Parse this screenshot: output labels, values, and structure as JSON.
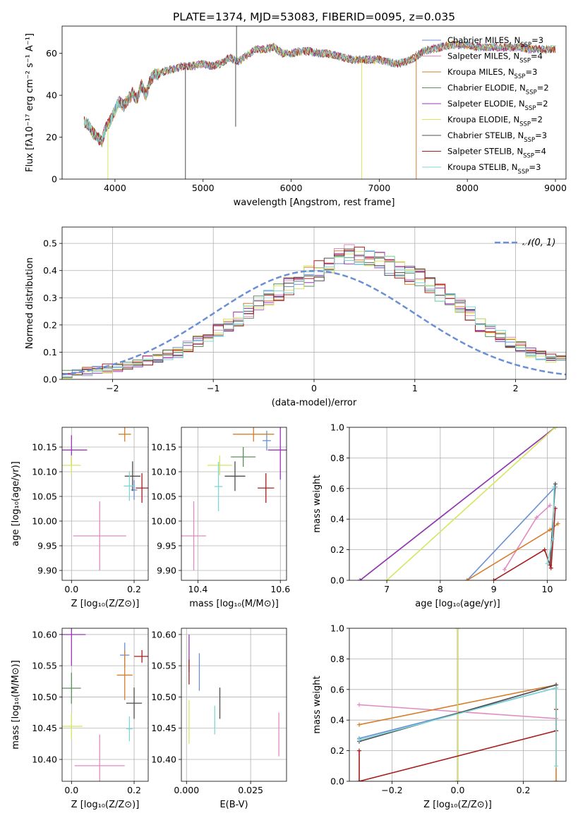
{
  "figure": {
    "title": "PLATE=1374, MJD=53083, FIBERID=0095, z=0.035"
  },
  "colors": {
    "series": [
      "#6a8fd6",
      "#e28ac0",
      "#d67d2a",
      "#5c8f5c",
      "#9b35b8",
      "#d6e660",
      "#4d4d4d",
      "#a81c1c",
      "#7fd6d6"
    ],
    "grid": "#b0b0b0"
  },
  "chart_data": [
    {
      "id": "spectrum",
      "type": "line",
      "xlabel": "wavelength [Angstrom, rest frame]",
      "ylabel": "Flux [fλ10⁻¹⁷ erg cm⁻² s⁻¹ A⁻¹]",
      "xlim": [
        3400,
        9120
      ],
      "ylim": [
        0,
        73
      ],
      "xticks": [
        4000,
        5000,
        6000,
        7000,
        8000,
        9000
      ],
      "yticks": [
        0,
        20,
        40,
        60
      ],
      "grid": false,
      "legend_position": "upper right",
      "legend": [
        "Chabrier MILES, N_SSP=3",
        "Salpeter MILES, N_SSP=4",
        "Kroupa MILES, N_SSP=3",
        "Chabrier ELODIE, N_SSP=2",
        "Salpeter ELODIE, N_SSP=2",
        "Kroupa ELODIE, N_SSP=2",
        "Chabrier STELIB, N_SSP=3",
        "Salpeter STELIB, N_SSP=4",
        "Kroupa STELIB, N_SSP=3"
      ],
      "model_x": [
        3650,
        3700,
        3750,
        3800,
        3850,
        3900,
        3950,
        4000,
        4050,
        4100,
        4150,
        4200,
        4250,
        4300,
        4350,
        4400,
        4450,
        4500,
        4600,
        4700,
        4800,
        4900,
        5000,
        5100,
        5200,
        5300,
        5400,
        5500,
        5600,
        5700,
        5800,
        5900,
        6000,
        6100,
        6200,
        6300,
        6400,
        6500,
        6600,
        6700,
        6800,
        6900,
        7000,
        7100,
        7200,
        7300,
        7400,
        7500,
        7600,
        7700,
        7800,
        7900,
        8000,
        8100,
        8200,
        8300,
        8400,
        8500,
        8600,
        8700,
        8800,
        8900,
        9000
      ],
      "model_y": [
        27,
        26,
        22,
        20,
        18,
        25,
        28,
        33,
        37,
        35,
        38,
        41,
        38,
        45,
        40,
        47,
        50,
        50,
        52,
        53,
        54,
        54,
        55,
        54,
        55,
        58,
        56,
        59,
        62,
        62,
        63,
        60,
        60,
        61,
        61,
        60,
        60,
        59,
        58,
        57,
        57,
        57,
        57,
        56,
        55,
        56,
        58,
        61,
        62,
        63,
        64,
        64,
        64,
        63,
        63,
        63,
        63,
        63,
        63,
        62,
        62,
        62,
        62
      ],
      "dips": [
        {
          "x": 3920,
          "to": 0,
          "series": 5
        },
        {
          "x": 4800,
          "to": 0,
          "series": 6
        },
        {
          "x": 5370,
          "to": 25,
          "series": 6
        },
        {
          "x": 6800,
          "to": 0,
          "series": 5
        },
        {
          "x": 7420,
          "to": 0,
          "series": 2
        }
      ],
      "spikes": [
        {
          "x": 5380,
          "to": 73,
          "series": 6
        }
      ]
    },
    {
      "id": "residuals",
      "type": "histogram",
      "xlabel": "(data-model)/error",
      "ylabel": "Normed distribution",
      "xlim": [
        -2.5,
        2.5
      ],
      "ylim": [
        0,
        0.56
      ],
      "xticks": [
        -2,
        -1,
        0,
        1,
        2
      ],
      "yticks": [
        0.0,
        0.1,
        0.2,
        0.3,
        0.4,
        0.5
      ],
      "grid": true,
      "legend_position": "upper right",
      "legend": [
        "𝒩(0, 1)"
      ],
      "bin_width": 0.1,
      "x_start": -2.5,
      "reference_curve": "normal pdf, mean 0, sigma 1",
      "base_values": [
        0.02,
        0.025,
        0.03,
        0.035,
        0.04,
        0.045,
        0.05,
        0.06,
        0.07,
        0.08,
        0.09,
        0.1,
        0.12,
        0.14,
        0.16,
        0.18,
        0.2,
        0.22,
        0.25,
        0.28,
        0.3,
        0.32,
        0.34,
        0.36,
        0.38,
        0.4,
        0.42,
        0.44,
        0.46,
        0.46,
        0.45,
        0.44,
        0.42,
        0.4,
        0.38,
        0.37,
        0.35,
        0.32,
        0.3,
        0.27,
        0.24,
        0.2,
        0.18,
        0.16,
        0.14,
        0.12,
        0.1,
        0.09,
        0.08,
        0.07,
        0.06,
        0.05,
        0.04,
        0.03,
        0.025,
        0.02
      ]
    },
    {
      "id": "age-vs-z",
      "type": "errorbar",
      "xlabel": "Z [log₁₀(Z/Z⊙)]",
      "ylabel": "age  [log₁₀(age/yr)]",
      "xlim": [
        -0.03,
        0.245
      ],
      "ylim": [
        9.88,
        10.19
      ],
      "xticks": [
        0.0,
        0.2
      ],
      "yticks": [
        9.9,
        9.95,
        10.0,
        10.05,
        10.1,
        10.15
      ],
      "grid": true,
      "points": [
        {
          "series": 0,
          "x": 0.2,
          "y": 10.063,
          "xerr": 0.01,
          "yerr": 0.02
        },
        {
          "series": 1,
          "x": 0.09,
          "y": 9.97,
          "xerr": 0.085,
          "yerr": 0.07
        },
        {
          "series": 2,
          "x": 0.17,
          "y": 10.176,
          "xerr": 0.02,
          "yerr": 0.015
        },
        {
          "series": 4,
          "x": 0.0,
          "y": 10.144,
          "xerr": 0.05,
          "yerr": 0.03
        },
        {
          "series": 5,
          "x": 0.0,
          "y": 10.113,
          "xerr": 0.03,
          "yerr": 0.02
        },
        {
          "series": 6,
          "x": 0.195,
          "y": 10.091,
          "xerr": 0.025,
          "yerr": 0.03
        },
        {
          "series": 7,
          "x": 0.225,
          "y": 10.067,
          "xerr": 0.02,
          "yerr": 0.03
        },
        {
          "series": 8,
          "x": 0.185,
          "y": 10.071,
          "xerr": 0.018,
          "yerr": 0.03
        }
      ]
    },
    {
      "id": "age-vs-mass",
      "type": "errorbar",
      "xlabel": "mass [log₁₀(M/M⊙)]",
      "ylabel": "",
      "xlim": [
        10.36,
        10.615
      ],
      "ylim": [
        9.88,
        10.19
      ],
      "xticks": [
        10.4,
        10.6
      ],
      "yticks": [
        9.9,
        9.95,
        10.0,
        10.05,
        10.1,
        10.15
      ],
      "grid": true,
      "points": [
        {
          "series": 0,
          "x": 10.567,
          "y": 10.163,
          "xerr": 0.01,
          "yerr": 0.02
        },
        {
          "series": 1,
          "x": 10.39,
          "y": 9.97,
          "xerr": 0.03,
          "yerr": 0.07
        },
        {
          "series": 2,
          "x": 10.535,
          "y": 10.176,
          "xerr": 0.05,
          "yerr": 0.015
        },
        {
          "series": 3,
          "x": 10.51,
          "y": 10.13,
          "xerr": 0.03,
          "yerr": 0.02
        },
        {
          "series": 4,
          "x": 10.6,
          "y": 10.144,
          "xerr": 0.03,
          "yerr": 0.06
        },
        {
          "series": 5,
          "x": 10.453,
          "y": 10.113,
          "xerr": 0.03,
          "yerr": 0.02
        },
        {
          "series": 6,
          "x": 10.49,
          "y": 10.091,
          "xerr": 0.025,
          "yerr": 0.03
        },
        {
          "series": 7,
          "x": 10.565,
          "y": 10.067,
          "xerr": 0.02,
          "yerr": 0.03
        },
        {
          "series": 8,
          "x": 10.45,
          "y": 10.07,
          "xerr": 0.01,
          "yerr": 0.05
        }
      ]
    },
    {
      "id": "weight-vs-age",
      "type": "line",
      "xlabel": "age  [log₁₀(age/yr)]",
      "ylabel": "mass weight",
      "xlim": [
        6.3,
        10.35
      ],
      "ylim": [
        0,
        1.0
      ],
      "xticks": [
        7,
        8,
        9,
        10
      ],
      "yticks": [
        0.0,
        0.2,
        0.4,
        0.6,
        0.8,
        1.0
      ],
      "grid": true,
      "series": [
        {
          "series": 0,
          "x": [
            8.5,
            10.15
          ],
          "y": [
            0.0,
            0.61
          ]
        },
        {
          "series": 1,
          "x": [
            9.2,
            9.8,
            10.05
          ],
          "y": [
            0.07,
            0.41,
            0.49
          ]
        },
        {
          "series": 2,
          "x": [
            8.5,
            10.05,
            10.2
          ],
          "y": [
            0.0,
            0.33,
            0.37
          ]
        },
        {
          "series": 3,
          "x": [
            6.5,
            10.15
          ],
          "y": [
            0.0,
            1.0
          ]
        },
        {
          "series": 4,
          "x": [
            6.5,
            10.15
          ],
          "y": [
            0.0,
            1.0
          ]
        },
        {
          "series": 5,
          "x": [
            7.0,
            10.15
          ],
          "y": [
            0.0,
            1.0
          ]
        },
        {
          "series": 6,
          "x": [
            10.05,
            10.15
          ],
          "y": [
            0.1,
            0.63
          ]
        },
        {
          "series": 7,
          "x": [
            9.0,
            9.95,
            10.07,
            10.15
          ],
          "y": [
            0.0,
            0.2,
            0.08,
            0.47
          ]
        },
        {
          "series": 8,
          "x": [
            10.0,
            10.1,
            10.13
          ],
          "y": [
            0.11,
            0.27,
            0.61
          ]
        }
      ]
    },
    {
      "id": "mass-vs-z",
      "type": "errorbar",
      "xlabel": "Z [log₁₀(Z/Z⊙)]",
      "ylabel": "mass [log₁₀(M/M⊙)]",
      "xlim": [
        -0.03,
        0.245
      ],
      "ylim": [
        10.365,
        10.61
      ],
      "xticks": [
        0.0,
        0.2
      ],
      "yticks": [
        10.4,
        10.45,
        10.5,
        10.55,
        10.6
      ],
      "grid": true,
      "points": [
        {
          "series": 0,
          "x": 0.17,
          "y": 10.567,
          "xerr": 0.015,
          "yerr": 0.02
        },
        {
          "series": 1,
          "x": 0.09,
          "y": 10.39,
          "xerr": 0.08,
          "yerr": 0.05
        },
        {
          "series": 2,
          "x": 0.17,
          "y": 10.535,
          "xerr": 0.025,
          "yerr": 0.04
        },
        {
          "series": 3,
          "x": 0.0,
          "y": 10.514,
          "xerr": 0.03,
          "yerr": 0.025
        },
        {
          "series": 4,
          "x": 0.0,
          "y": 10.6,
          "xerr": 0.045,
          "yerr": 0.05
        },
        {
          "series": 5,
          "x": 0.0,
          "y": 10.453,
          "xerr": 0.035,
          "yerr": 0.02
        },
        {
          "series": 6,
          "x": 0.2,
          "y": 10.49,
          "xerr": 0.025,
          "yerr": 0.025
        },
        {
          "series": 7,
          "x": 0.225,
          "y": 10.565,
          "xerr": 0.025,
          "yerr": 0.01
        },
        {
          "series": 8,
          "x": 0.185,
          "y": 10.449,
          "xerr": 0.01,
          "yerr": 0.02
        }
      ]
    },
    {
      "id": "mass-vs-ebv",
      "type": "errorbar",
      "xlabel": "E(B-V)",
      "ylabel": "",
      "xlim": [
        -0.002,
        0.039
      ],
      "ylim": [
        10.365,
        10.61
      ],
      "xticks": [
        0.0,
        0.025
      ],
      "yticks": [
        10.4,
        10.45,
        10.5,
        10.55,
        10.6
      ],
      "grid": true,
      "points": [
        {
          "series": 0,
          "x": 0.005,
          "y": 10.54,
          "xerr": 0.0,
          "yerr": 0.03
        },
        {
          "series": 1,
          "x": 0.036,
          "y": 10.44,
          "xerr": 0.0,
          "yerr": 0.035
        },
        {
          "series": 4,
          "x": 0.001,
          "y": 10.57,
          "xerr": 0.0,
          "yerr": 0.03
        },
        {
          "series": 5,
          "x": 0.001,
          "y": 10.46,
          "xerr": 0.0,
          "yerr": 0.035
        },
        {
          "series": 6,
          "x": 0.013,
          "y": 10.49,
          "xerr": 0.0,
          "yerr": 0.025
        },
        {
          "series": 7,
          "x": 0.001,
          "y": 10.54,
          "xerr": 0.0,
          "yerr": 0.02
        },
        {
          "series": 8,
          "x": 0.011,
          "y": 10.463,
          "xerr": 0.0,
          "yerr": 0.023
        }
      ]
    },
    {
      "id": "weight-vs-z",
      "type": "line",
      "xlabel": "Z [log₁₀(Z/Z⊙)]",
      "ylabel": "mass weight",
      "xlim": [
        -0.33,
        0.33
      ],
      "ylim": [
        0,
        1.0
      ],
      "xticks": [
        -0.2,
        0.0,
        0.2
      ],
      "yticks": [
        0.0,
        0.2,
        0.4,
        0.6,
        0.8,
        1.0
      ],
      "grid": true,
      "series": [
        {
          "series": 0,
          "x": [
            -0.3,
            0.3
          ],
          "y": [
            0.28,
            0.61
          ]
        },
        {
          "series": 1,
          "x": [
            -0.3,
            0.3
          ],
          "y": [
            0.5,
            0.41
          ]
        },
        {
          "series": 2,
          "x": [
            -0.3,
            0.3,
            0.3
          ],
          "y": [
            0.37,
            0.63,
            0.0
          ]
        },
        {
          "series": 3,
          "x": [
            0.0,
            0.0
          ],
          "y": [
            0.0,
            1.0
          ]
        },
        {
          "series": 4,
          "x": [
            0.0,
            0.0
          ],
          "y": [
            0.0,
            1.0
          ]
        },
        {
          "series": 5,
          "x": [
            0.0,
            0.0
          ],
          "y": [
            0.0,
            1.0
          ]
        },
        {
          "series": 6,
          "x": [
            -0.3,
            0.3
          ],
          "y": [
            0.26,
            0.63
          ]
        },
        {
          "series": 7,
          "x": [
            -0.3,
            -0.3,
            0.3,
            0.3
          ],
          "y": [
            0.2,
            0.0,
            0.33,
            0.47
          ]
        },
        {
          "series": 8,
          "x": [
            -0.3,
            0.3,
            0.3
          ],
          "y": [
            0.27,
            0.61,
            0.1
          ]
        }
      ]
    }
  ]
}
